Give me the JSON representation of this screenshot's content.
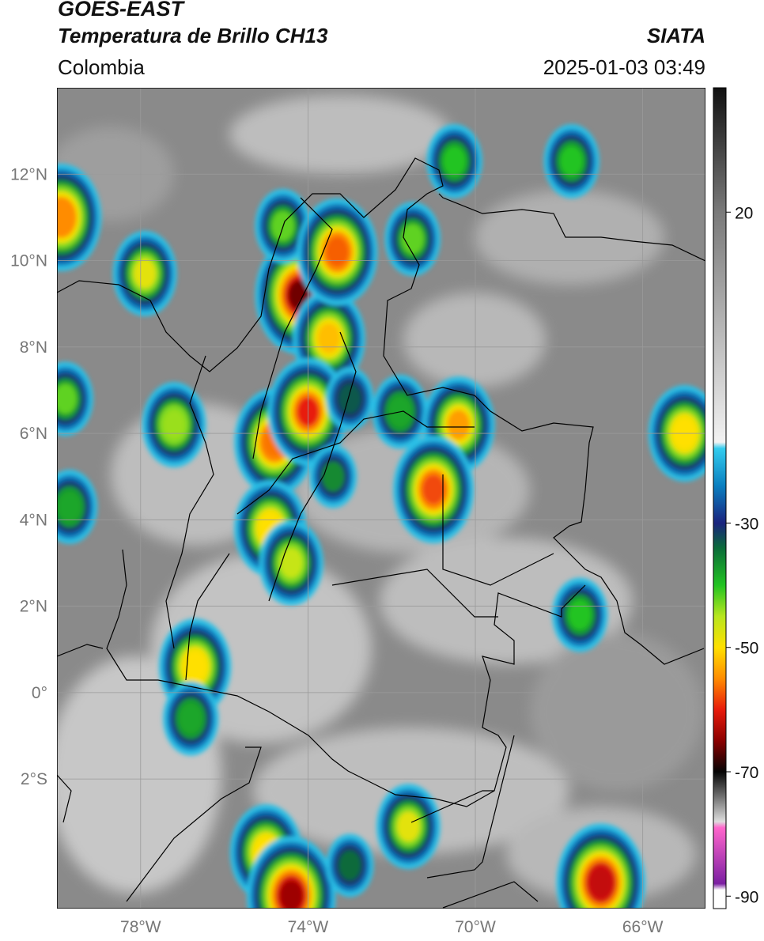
{
  "header": {
    "satellite": "GOES-EAST",
    "product": "Temperatura de Brillo CH13",
    "region": "Colombia",
    "agency": "SIATA",
    "timestamp": "2025-01-03 03:49"
  },
  "map": {
    "lon_range": [
      -80,
      -64.5
    ],
    "lat_range": [
      -5,
      14
    ],
    "lat_ticks": [
      {
        "value": 12,
        "label": "12°N"
      },
      {
        "value": 10,
        "label": "10°N"
      },
      {
        "value": 8,
        "label": "8°N"
      },
      {
        "value": 6,
        "label": "6°N"
      },
      {
        "value": 4,
        "label": "4°N"
      },
      {
        "value": 2,
        "label": "2°N"
      },
      {
        "value": 0,
        "label": "0°"
      },
      {
        "value": -2,
        "label": "2°S"
      }
    ],
    "lon_ticks": [
      {
        "value": -78,
        "label": "78°W"
      },
      {
        "value": -74,
        "label": "74°W"
      },
      {
        "value": -70,
        "label": "70°W"
      },
      {
        "value": -66,
        "label": "66°W"
      }
    ],
    "gridlines": true,
    "background_color": "#8a8a8a"
  },
  "colorbar": {
    "range": [
      -92,
      40
    ],
    "ticks": [
      {
        "value": 20,
        "label": "20"
      },
      {
        "value": -30,
        "label": "-30"
      },
      {
        "value": -50,
        "label": "-50"
      },
      {
        "value": -70,
        "label": "-70"
      },
      {
        "value": -90,
        "label": "-90"
      }
    ],
    "stops": [
      {
        "t": 40,
        "color": "#111111"
      },
      {
        "t": 20,
        "color": "#7a7a7a"
      },
      {
        "t": -17,
        "color": "#f2f2f2"
      },
      {
        "t": -18,
        "color": "#33ccee"
      },
      {
        "t": -24,
        "color": "#0a7fc0"
      },
      {
        "t": -30,
        "color": "#1a237e"
      },
      {
        "t": -34,
        "color": "#0b6b3a"
      },
      {
        "t": -40,
        "color": "#22c422"
      },
      {
        "t": -45,
        "color": "#b8e61e"
      },
      {
        "t": -50,
        "color": "#ffe000"
      },
      {
        "t": -55,
        "color": "#ff8c00"
      },
      {
        "t": -60,
        "color": "#e81b0b"
      },
      {
        "t": -65,
        "color": "#8b0000"
      },
      {
        "t": -70,
        "color": "#050505"
      },
      {
        "t": -78,
        "color": "#dddddd"
      },
      {
        "t": -79,
        "color": "#ff66cc"
      },
      {
        "t": -88,
        "color": "#7b1fa2"
      },
      {
        "t": -89,
        "color": "#ffffff"
      },
      {
        "t": -92,
        "color": "#ffffff"
      }
    ]
  },
  "storm_cells": [
    {
      "lon": -74.2,
      "lat": 9.2,
      "tb": -66
    },
    {
      "lon": -73.5,
      "lat": 8.2,
      "tb": -52
    },
    {
      "lon": -74.6,
      "lat": 10.8,
      "tb": -42
    },
    {
      "lon": -73.3,
      "lat": 10.2,
      "tb": -57
    },
    {
      "lon": -71.5,
      "lat": 10.5,
      "tb": -42
    },
    {
      "lon": -70.5,
      "lat": 12.3,
      "tb": -40
    },
    {
      "lon": -77.9,
      "lat": 9.7,
      "tb": -48
    },
    {
      "lon": -77.2,
      "lat": 6.2,
      "tb": -44
    },
    {
      "lon": -74.8,
      "lat": 5.8,
      "tb": -56
    },
    {
      "lon": -74.0,
      "lat": 6.5,
      "tb": -60
    },
    {
      "lon": -73.4,
      "lat": 5.0,
      "tb": -36
    },
    {
      "lon": -73.0,
      "lat": 6.8,
      "tb": -33
    },
    {
      "lon": -71.8,
      "lat": 6.5,
      "tb": -38
    },
    {
      "lon": -70.4,
      "lat": 6.2,
      "tb": -54
    },
    {
      "lon": -71.0,
      "lat": 4.7,
      "tb": -58
    },
    {
      "lon": -74.9,
      "lat": 3.8,
      "tb": -50
    },
    {
      "lon": -74.4,
      "lat": 3.0,
      "tb": -46
    },
    {
      "lon": -76.7,
      "lat": 0.6,
      "tb": -50
    },
    {
      "lon": -76.8,
      "lat": -0.6,
      "tb": -38
    },
    {
      "lon": -75.0,
      "lat": -3.7,
      "tb": -50
    },
    {
      "lon": -74.4,
      "lat": -4.7,
      "tb": -64
    },
    {
      "lon": -73.0,
      "lat": -4.0,
      "tb": -34
    },
    {
      "lon": -71.6,
      "lat": -3.1,
      "tb": -48
    },
    {
      "lon": -67.0,
      "lat": -4.4,
      "tb": -62
    },
    {
      "lon": -65.0,
      "lat": 6.0,
      "tb": -50
    },
    {
      "lon": -79.8,
      "lat": 6.8,
      "tb": -42
    },
    {
      "lon": -79.9,
      "lat": 11.0,
      "tb": -55
    },
    {
      "lon": -79.7,
      "lat": 4.3,
      "tb": -38
    },
    {
      "lon": -67.5,
      "lat": 1.8,
      "tb": -40
    },
    {
      "lon": -67.7,
      "lat": 12.3,
      "tb": -40
    }
  ]
}
